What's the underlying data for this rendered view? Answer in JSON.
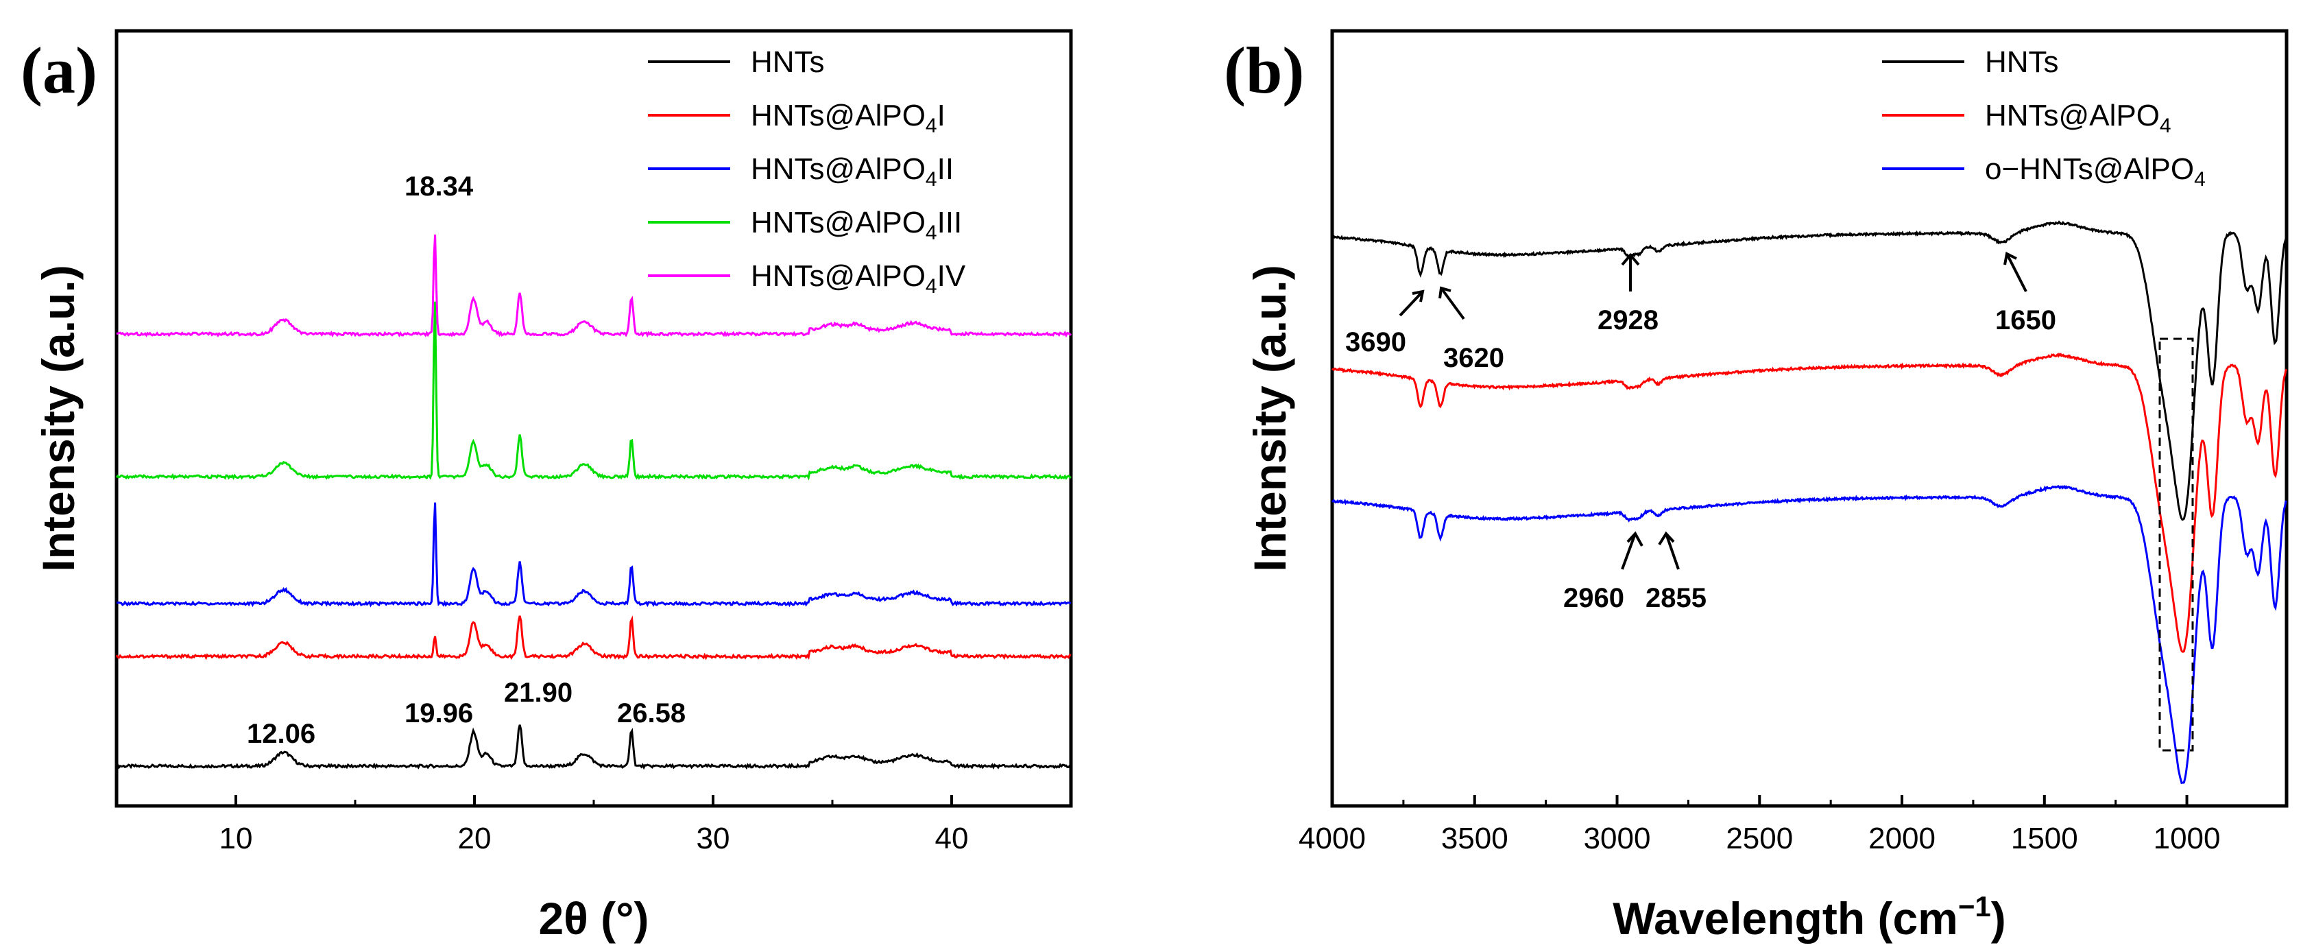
{
  "chart_data": [
    {
      "panel": "(a)",
      "type": "line",
      "xlabel": "2θ (°)",
      "ylabel": "Intensity (a.u.)",
      "xlim": [
        5,
        45
      ],
      "xticks": [
        10,
        20,
        30,
        40
      ],
      "series": [
        {
          "name": "HNTs",
          "legend_main": "HNTs",
          "legend_sub": "",
          "legend_tail": "",
          "color": "#000000",
          "offset": 0
        },
        {
          "name": "HNTs@AlPO4I",
          "legend_main": "HNTs@AlPO",
          "legend_sub": "4",
          "legend_tail": "I",
          "color": "#ff0000",
          "offset": 1
        },
        {
          "name": "HNTs@AlPO4II",
          "legend_main": "HNTs@AlPO",
          "legend_sub": "4",
          "legend_tail": "II",
          "color": "#0000ff",
          "offset": 2
        },
        {
          "name": "HNTs@AlPO4III",
          "legend_main": "HNTs@AlPO",
          "legend_sub": "4",
          "legend_tail": "III",
          "color": "#00dd00",
          "offset": 3
        },
        {
          "name": "HNTs@AlPO4IV",
          "legend_main": "HNTs@AlPO",
          "legend_sub": "4",
          "legend_tail": "IV",
          "color": "#ff00ff",
          "offset": 4
        }
      ],
      "peaks_2theta": [
        12.06,
        18.34,
        19.96,
        21.9,
        24.6,
        26.58,
        35.0,
        36.0,
        38.4
      ],
      "annotations": [
        "12.06",
        "18.34",
        "19.96",
        "21.90",
        "26.58"
      ]
    },
    {
      "panel": "(b)",
      "type": "line",
      "xlabel": "Wavelength (cm",
      "xlabel_sup": "−1",
      "xlabel_tail": ")",
      "ylabel": "Intensity (a.u.)",
      "xlim": [
        4000,
        650
      ],
      "xticks": [
        4000,
        3500,
        3000,
        2500,
        2000,
        1500,
        1000
      ],
      "series": [
        {
          "name": "HNTs",
          "legend_main": "HNTs",
          "legend_sub": "",
          "color": "#000000",
          "offset": 0
        },
        {
          "name": "HNTs@AlPO4",
          "legend_main": "HNTs@AlPO",
          "legend_sub": "4",
          "color": "#ff0000",
          "offset": 1
        },
        {
          "name": "o-HNTs@AlPO4",
          "legend_main": "o−HNTs@AlPO",
          "legend_sub": "4",
          "color": "#0000ff",
          "offset": 2
        }
      ],
      "bands_cm": [
        3690,
        3620,
        2960,
        2928,
        2855,
        1650,
        1100,
        1000,
        910,
        790,
        750,
        690
      ],
      "annotations": [
        "3690",
        "3620",
        "2928",
        "1650",
        "2960",
        "2855"
      ]
    }
  ],
  "labels": {
    "panel_a": "(a)",
    "panel_b": "(b)"
  }
}
